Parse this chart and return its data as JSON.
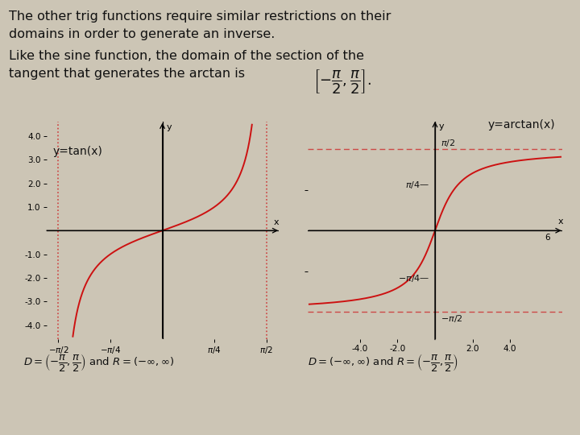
{
  "bg_color": "#ccc5b5",
  "text_color": "#111111",
  "curve_color": "#cc1111",
  "dashed_color": "#cc3333",
  "title_line1": "The other trig functions require similar restrictions on their",
  "title_line2": "domains in order to generate an inverse.",
  "subtitle_line1": "Like the sine function, the domain of the section of the",
  "subtitle_line2": "tangent that generates the arctan is",
  "tan_label": "y=tan(x)",
  "arctan_label": "y=arctan(x)",
  "tan_domain_text": "$D = \\left(-\\dfrac{\\pi}{2},\\dfrac{\\pi}{2}\\right)$ and $R = (-\\infty,\\infty)$",
  "arctan_domain_text": "$D = (-\\infty,\\infty)$ and $R = \\left(-\\dfrac{\\pi}{2},\\dfrac{\\pi}{2}\\right)$",
  "tan_xlim": [
    -1.75,
    1.75
  ],
  "tan_ylim": [
    -4.6,
    4.6
  ],
  "arctan_xlim": [
    -6.8,
    6.8
  ],
  "arctan_ylim": [
    -2.1,
    2.1
  ]
}
